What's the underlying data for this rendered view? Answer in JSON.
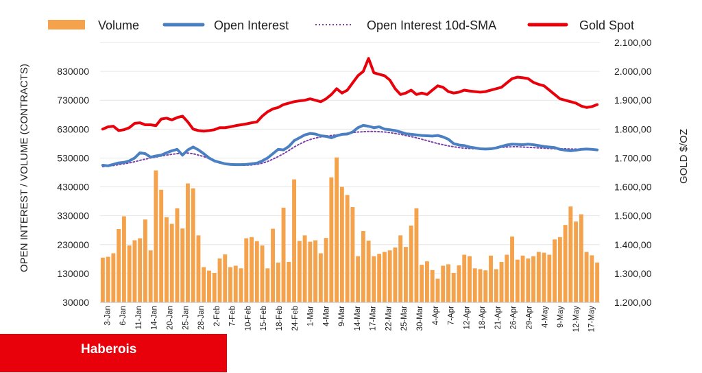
{
  "brand": {
    "name": "Haberois",
    "color": "#e8000b"
  },
  "chart_data": {
    "type": "bar+line",
    "title": "",
    "ylabel_left": "OPEN INTEREST / VOLUME (CONTRACTS)",
    "ylabel_right": "GOLD $/OZ",
    "ylim_left": [
      30000,
      930000
    ],
    "ylim_right": [
      1200,
      2100
    ],
    "yticks_left": [
      "830000",
      "730000",
      "630000",
      "530000",
      "430000",
      "330000",
      "230000",
      "130000",
      "30000"
    ],
    "yticks_right": [
      "2.100,00",
      "2.000,00",
      "1.900,00",
      "1.800,00",
      "1.700,00",
      "1.600,00",
      "1.500,00",
      "1.400,00",
      "1.300,00",
      "1.200,00"
    ],
    "xtick_labels": [
      "3-Jan",
      "6-Jan",
      "11-Jan",
      "14-Jan",
      "20-Jan",
      "25-Jan",
      "28-Jan",
      "2-Feb",
      "7-Feb",
      "10-Feb",
      "15-Feb",
      "18-Feb",
      "24-Feb",
      "1-Mar",
      "4-Mar",
      "9-Mar",
      "14-Mar",
      "17-Mar",
      "22-Mar",
      "25-Mar",
      "30-Mar",
      "4-Apr",
      "7-Apr",
      "12-Apr",
      "18-Apr",
      "21-Apr",
      "26-Apr",
      "29-Apr",
      "4-May",
      "9-May",
      "12-May",
      "17-May"
    ],
    "legend_position": "top",
    "grid": true,
    "series": [
      {
        "name": "Volume",
        "kind": "bar",
        "axis": "left",
        "color": "#f4a24c",
        "values": [
          185000,
          188000,
          200000,
          284000,
          328000,
          227000,
          245000,
          252000,
          317000,
          210000,
          487000,
          420000,
          325000,
          302000,
          356000,
          286000,
          442000,
          425000,
          262000,
          152000,
          140000,
          132000,
          182000,
          196000,
          152000,
          157000,
          148000,
          252000,
          256000,
          242000,
          227000,
          148000,
          285000,
          168000,
          358000,
          170000,
          456000,
          243000,
          262000,
          240000,
          245000,
          200000,
          253000,
          463000,
          532000,
          430000,
          402000,
          360000,
          190000,
          277000,
          244000,
          190000,
          198000,
          205000,
          210000,
          220000,
          262000,
          222000,
          296000,
          356000,
          160000,
          172000,
          142000,
          112000,
          157000,
          162000,
          132000,
          158000,
          195000,
          190000,
          148000,
          145000,
          141000,
          192000,
          145000,
          170000,
          195000,
          258000,
          178000,
          192000,
          182000,
          190000,
          205000,
          202000,
          195000,
          248000,
          256000,
          298000,
          362000,
          310000,
          335000,
          205000,
          193000,
          168000
        ]
      },
      {
        "name": "Open Interest",
        "kind": "line",
        "axis": "left",
        "color": "#4a7fc1",
        "values": [
          505000,
          503000,
          508000,
          513000,
          515000,
          520000,
          530000,
          548000,
          545000,
          533000,
          537000,
          540000,
          548000,
          555000,
          560000,
          540000,
          558000,
          568000,
          558000,
          545000,
          530000,
          520000,
          515000,
          510000,
          508000,
          507000,
          507000,
          508000,
          510000,
          512000,
          520000,
          530000,
          545000,
          560000,
          558000,
          570000,
          590000,
          600000,
          610000,
          615000,
          613000,
          607000,
          605000,
          600000,
          607000,
          612000,
          613000,
          620000,
          635000,
          643000,
          640000,
          635000,
          638000,
          630000,
          628000,
          625000,
          620000,
          614000,
          612000,
          610000,
          608000,
          607000,
          606000,
          608000,
          603000,
          595000,
          580000,
          575000,
          573000,
          568000,
          565000,
          562000,
          561000,
          562000,
          565000,
          570000,
          575000,
          578000,
          577000,
          576000,
          578000,
          576000,
          573000,
          570000,
          568000,
          566000,
          560000,
          557000,
          555000,
          557000,
          560000,
          561000,
          560000,
          558000
        ]
      },
      {
        "name": "Open Interest 10d-SMA",
        "kind": "line",
        "style": "dotted",
        "axis": "left",
        "color": "#7a3fa8",
        "values": [
          500000,
          502000,
          504000,
          507000,
          510000,
          513000,
          517000,
          522000,
          526000,
          530000,
          533000,
          537000,
          540000,
          543000,
          545000,
          546000,
          547000,
          545000,
          540000,
          535000,
          528000,
          521000,
          515000,
          511000,
          508000,
          506000,
          505000,
          505000,
          506000,
          508000,
          512000,
          518000,
          526000,
          535000,
          545000,
          556000,
          568000,
          578000,
          587000,
          594000,
          599000,
          603000,
          606000,
          608000,
          610000,
          613000,
          616000,
          618000,
          620000,
          621000,
          622000,
          622000,
          621000,
          620000,
          618000,
          615000,
          612000,
          608000,
          604000,
          600000,
          595000,
          590000,
          585000,
          580000,
          576000,
          572000,
          569000,
          566000,
          564000,
          563000,
          562000,
          562000,
          563000,
          564000,
          566000,
          567000,
          568000,
          569000,
          569000,
          568000,
          567000,
          566000,
          565000,
          564000,
          563000,
          562000,
          562000,
          562000,
          561000,
          561000,
          560000,
          560000,
          559000,
          558000
        ]
      },
      {
        "name": "Gold Spot",
        "kind": "line",
        "axis": "right",
        "color": "#e8000b",
        "values": [
          1800,
          1808,
          1810,
          1795,
          1798,
          1805,
          1820,
          1822,
          1815,
          1815,
          1812,
          1835,
          1838,
          1832,
          1840,
          1845,
          1825,
          1800,
          1795,
          1793,
          1795,
          1798,
          1805,
          1805,
          1808,
          1812,
          1815,
          1818,
          1822,
          1825,
          1845,
          1860,
          1870,
          1875,
          1885,
          1890,
          1895,
          1898,
          1900,
          1905,
          1900,
          1895,
          1905,
          1920,
          1940,
          1925,
          1935,
          1960,
          1985,
          2000,
          2045,
          1995,
          1990,
          1985,
          1970,
          1940,
          1920,
          1925,
          1935,
          1920,
          1925,
          1920,
          1935,
          1950,
          1945,
          1930,
          1925,
          1928,
          1935,
          1932,
          1930,
          1928,
          1930,
          1935,
          1940,
          1945,
          1960,
          1975,
          1980,
          1978,
          1975,
          1962,
          1955,
          1950,
          1935,
          1920,
          1905,
          1900,
          1895,
          1890,
          1880,
          1875,
          1878,
          1885
        ]
      }
    ]
  }
}
